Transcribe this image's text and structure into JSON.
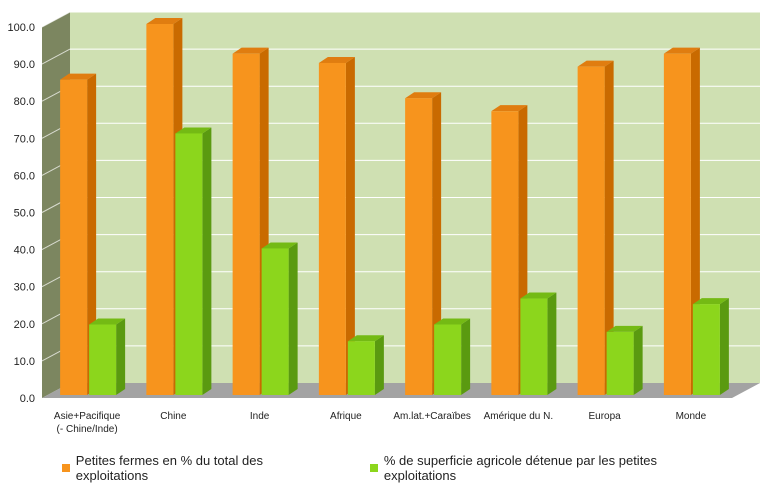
{
  "chart_data": {
    "type": "bar",
    "style": "3d-clustered-column",
    "title": "",
    "xlabel": "",
    "ylabel": "",
    "ylim": [
      0,
      100
    ],
    "yticks": [
      "0.0",
      "10.0",
      "20.0",
      "30.0",
      "40.0",
      "50.0",
      "60.0",
      "70.0",
      "80.0",
      "90.0",
      "100.0"
    ],
    "categories": [
      [
        "Asie+Pacifique",
        "(- Chine/Inde)"
      ],
      [
        "Chine"
      ],
      [
        "Inde"
      ],
      [
        "Afrique"
      ],
      [
        "Am.lat.+Caraïbes"
      ],
      [
        "Amérique du N."
      ],
      [
        "Europa"
      ],
      [
        "Monde"
      ]
    ],
    "series": [
      {
        "name": "Petites fermes en % du total des exploitations",
        "color": "#f7941d",
        "side_color": "#c96a00",
        "top_color": "#e07d10",
        "values": [
          85.0,
          100.0,
          92.0,
          89.5,
          80.0,
          76.5,
          88.5,
          92.0
        ]
      },
      {
        "name": "% de superficie agricole détenue par les petites exploitations",
        "color": "#8cd61c",
        "side_color": "#5a9a10",
        "top_color": "#74ba14",
        "values": [
          19.0,
          70.5,
          39.5,
          14.5,
          19.0,
          26.0,
          17.0,
          24.5
        ]
      }
    ],
    "grid": true,
    "legend_position": "bottom",
    "colors": {
      "wall": "#cfe0b2",
      "side_wall": "#7c8660",
      "floor": "#a3a3a3",
      "gridline": "#ffffff"
    }
  }
}
